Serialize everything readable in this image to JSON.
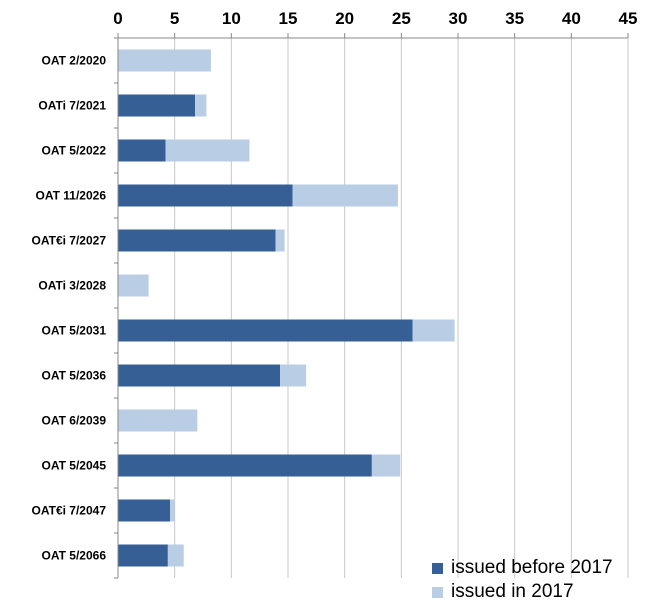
{
  "chart_data": {
    "type": "bar",
    "orientation": "horizontal",
    "stacked": true,
    "categories": [
      "OAT 2/2020",
      "OATi 7/2021",
      "OAT 5/2022",
      "OAT 11/2026",
      "OAT€i 7/2027",
      "OATi 3/2028",
      "OAT 5/2031",
      "OAT 5/2036",
      "OAT 6/2039",
      "OAT 5/2045",
      "OAT€i 7/2047",
      "OAT 5/2066"
    ],
    "series": [
      {
        "name": "issued before 2017",
        "color": "#355f95",
        "values": [
          0,
          6.8,
          4.2,
          15.4,
          13.9,
          0,
          26.0,
          14.3,
          0,
          22.4,
          4.6,
          4.4
        ]
      },
      {
        "name": "issued in 2017",
        "color": "#b9cde5",
        "values": [
          8.2,
          1.0,
          7.4,
          9.3,
          0.8,
          2.7,
          3.7,
          2.3,
          7.0,
          2.5,
          0.4,
          1.4
        ]
      }
    ],
    "xlim": [
      0,
      45
    ],
    "xticks": [
      0,
      5,
      10,
      15,
      20,
      25,
      30,
      35,
      40,
      45
    ],
    "xaxis_position": "top",
    "grid": true,
    "legend_position": "bottom-right"
  }
}
